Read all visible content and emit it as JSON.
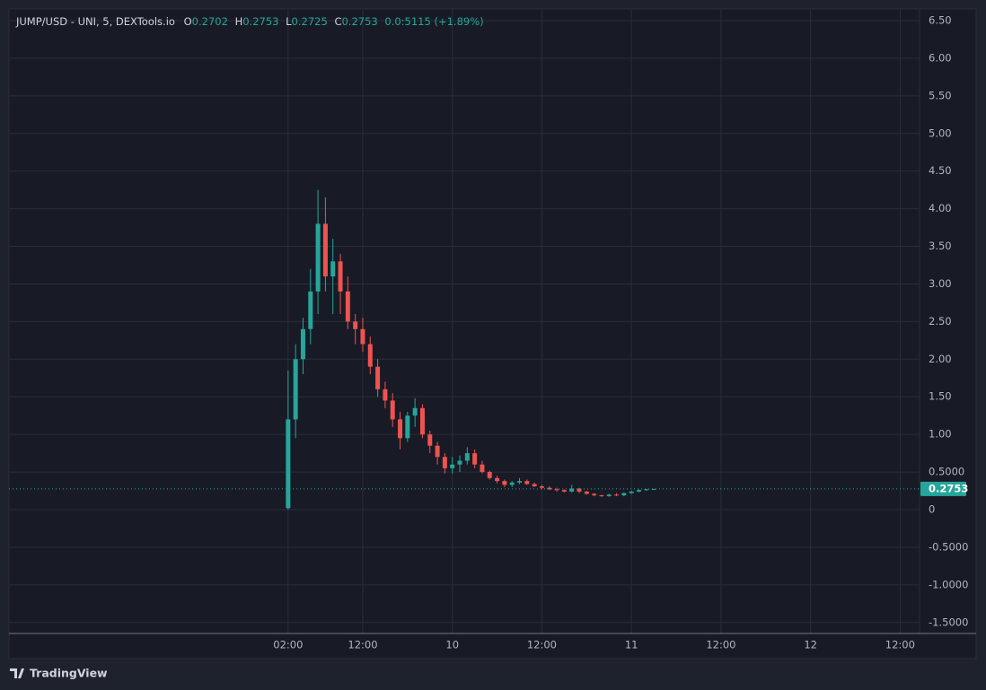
{
  "chart_data": {
    "type": "candlestick",
    "title": "JUMP/USD - UNI, 5, DEXTools.io",
    "legend_labels": [
      "O",
      "H",
      "L",
      "C"
    ],
    "change_label": "0.0:5115 (+1.89%)",
    "up_color": "#26a69a",
    "down_color": "#ef5350",
    "grid": true,
    "last_price_line": true,
    "x": [
      2,
      3,
      4,
      5,
      6,
      7,
      8,
      9,
      10,
      11,
      12,
      13,
      14,
      15,
      16,
      17,
      18,
      19,
      20,
      21,
      22,
      23,
      24,
      25,
      26,
      27,
      28,
      29,
      30,
      31,
      32,
      33,
      34,
      35,
      36,
      37,
      38,
      39,
      40,
      41,
      42,
      43,
      44,
      45,
      46,
      47,
      48,
      49,
      50,
      51
    ],
    "open": [
      0.02,
      1.2,
      2.0,
      2.4,
      2.9,
      3.8,
      3.1,
      3.3,
      2.9,
      2.5,
      2.4,
      2.2,
      1.9,
      1.6,
      1.45,
      1.2,
      0.95,
      1.25,
      1.35,
      1.0,
      0.85,
      0.7,
      0.55,
      0.6,
      0.65,
      0.75,
      0.6,
      0.5,
      0.42,
      0.38,
      0.33,
      0.36,
      0.38,
      0.34,
      0.31,
      0.29,
      0.27,
      0.26,
      0.24,
      0.28,
      0.24,
      0.21,
      0.19,
      0.18,
      0.2,
      0.19,
      0.22,
      0.24,
      0.26,
      0.2702
    ],
    "high": [
      1.85,
      2.2,
      2.55,
      3.2,
      4.25,
      4.15,
      3.6,
      3.4,
      3.1,
      2.6,
      2.55,
      2.3,
      2.0,
      1.7,
      1.55,
      1.3,
      1.3,
      1.48,
      1.4,
      1.05,
      0.9,
      0.75,
      0.7,
      0.72,
      0.83,
      0.8,
      0.65,
      0.52,
      0.45,
      0.4,
      0.38,
      0.42,
      0.4,
      0.36,
      0.33,
      0.31,
      0.29,
      0.27,
      0.33,
      0.29,
      0.25,
      0.22,
      0.2,
      0.21,
      0.22,
      0.23,
      0.25,
      0.27,
      0.2753,
      0.2753
    ],
    "low": [
      0,
      0.95,
      1.8,
      2.2,
      2.6,
      2.9,
      2.6,
      2.6,
      2.4,
      2.2,
      2.1,
      1.8,
      1.5,
      1.35,
      1.1,
      0.8,
      0.9,
      1.1,
      0.95,
      0.75,
      0.6,
      0.48,
      0.48,
      0.5,
      0.6,
      0.55,
      0.48,
      0.4,
      0.35,
      0.3,
      0.3,
      0.34,
      0.33,
      0.3,
      0.27,
      0.26,
      0.24,
      0.23,
      0.23,
      0.22,
      0.2,
      0.18,
      0.17,
      0.17,
      0.18,
      0.18,
      0.21,
      0.23,
      0.25,
      0.2725
    ],
    "close": [
      1.2,
      2.0,
      2.4,
      2.9,
      3.8,
      3.1,
      3.3,
      2.9,
      2.5,
      2.4,
      2.2,
      1.9,
      1.6,
      1.45,
      1.2,
      0.95,
      1.25,
      1.35,
      1.0,
      0.85,
      0.7,
      0.55,
      0.6,
      0.65,
      0.75,
      0.6,
      0.5,
      0.42,
      0.38,
      0.33,
      0.36,
      0.38,
      0.34,
      0.31,
      0.29,
      0.27,
      0.26,
      0.24,
      0.28,
      0.24,
      0.21,
      0.19,
      0.18,
      0.2,
      0.19,
      0.22,
      0.24,
      0.26,
      0.27,
      0.2753
    ],
    "xlim": [
      -35.4,
      86.6
    ],
    "ylim": [
      -1.646,
      6.655
    ],
    "xticks": [
      {
        "value": 2,
        "label": "02:00"
      },
      {
        "value": 12,
        "label": "12:00"
      },
      {
        "value": 24,
        "label": "10"
      },
      {
        "value": 36,
        "label": "12:00"
      },
      {
        "value": 48,
        "label": "11"
      },
      {
        "value": 60,
        "label": "12:00"
      },
      {
        "value": 72,
        "label": "12"
      },
      {
        "value": 84,
        "label": "12:00"
      }
    ],
    "yticks": [
      {
        "value": 6.5,
        "label": "6.50"
      },
      {
        "value": 6,
        "label": "6.00"
      },
      {
        "value": 5.5,
        "label": "5.50"
      },
      {
        "value": 5,
        "label": "5.00"
      },
      {
        "value": 4.5,
        "label": "4.50"
      },
      {
        "value": 4,
        "label": "4.00"
      },
      {
        "value": 3.5,
        "label": "3.50"
      },
      {
        "value": 3,
        "label": "3.00"
      },
      {
        "value": 2.5,
        "label": "2.50"
      },
      {
        "value": 2,
        "label": "2.00"
      },
      {
        "value": 1.5,
        "label": "1.50"
      },
      {
        "value": 1,
        "label": "1.00"
      },
      {
        "value": 0.5,
        "label": "0.5000"
      },
      0,
      {
        "value": -0.5,
        "label": "-0.5000"
      },
      {
        "value": -1,
        "label": "-1.0000"
      },
      {
        "value": -1.5,
        "label": "-1.5000"
      }
    ]
  },
  "branding": "TradingView"
}
